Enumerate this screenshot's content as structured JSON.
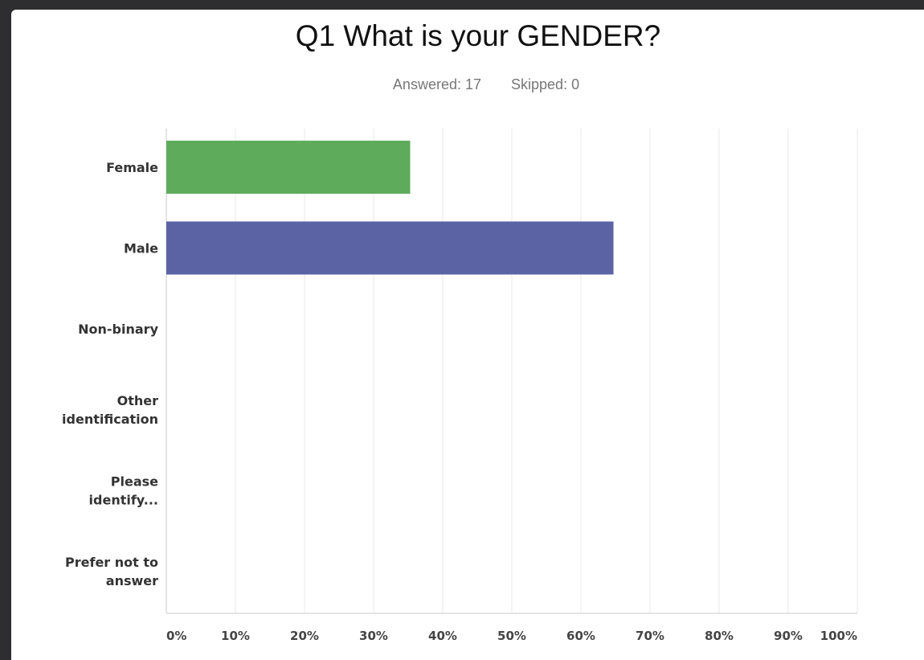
{
  "chart_data": {
    "type": "bar",
    "orientation": "horizontal",
    "title": "Q1 What is your GENDER?",
    "answered_label": "Answered: 17",
    "skipped_label": "Skipped: 0",
    "categories": [
      [
        "Female"
      ],
      [
        "Male"
      ],
      [
        "Non-binary"
      ],
      [
        "Other",
        "identification"
      ],
      [
        "Please",
        "identify..."
      ],
      [
        "Prefer not to",
        "answer"
      ]
    ],
    "values": [
      35.29,
      64.71,
      0,
      0,
      0,
      0
    ],
    "unit": "%",
    "xlim": [
      0,
      100
    ],
    "x_ticks": [
      "0%",
      "10%",
      "20%",
      "30%",
      "40%",
      "50%",
      "60%",
      "70%",
      "80%",
      "90%",
      "100%"
    ],
    "bar_colors": [
      "#5fab5c",
      "#5b63a5",
      "#b0b0b0",
      "#b0b0b0",
      "#b0b0b0",
      "#b0b0b0"
    ],
    "grid": true
  }
}
